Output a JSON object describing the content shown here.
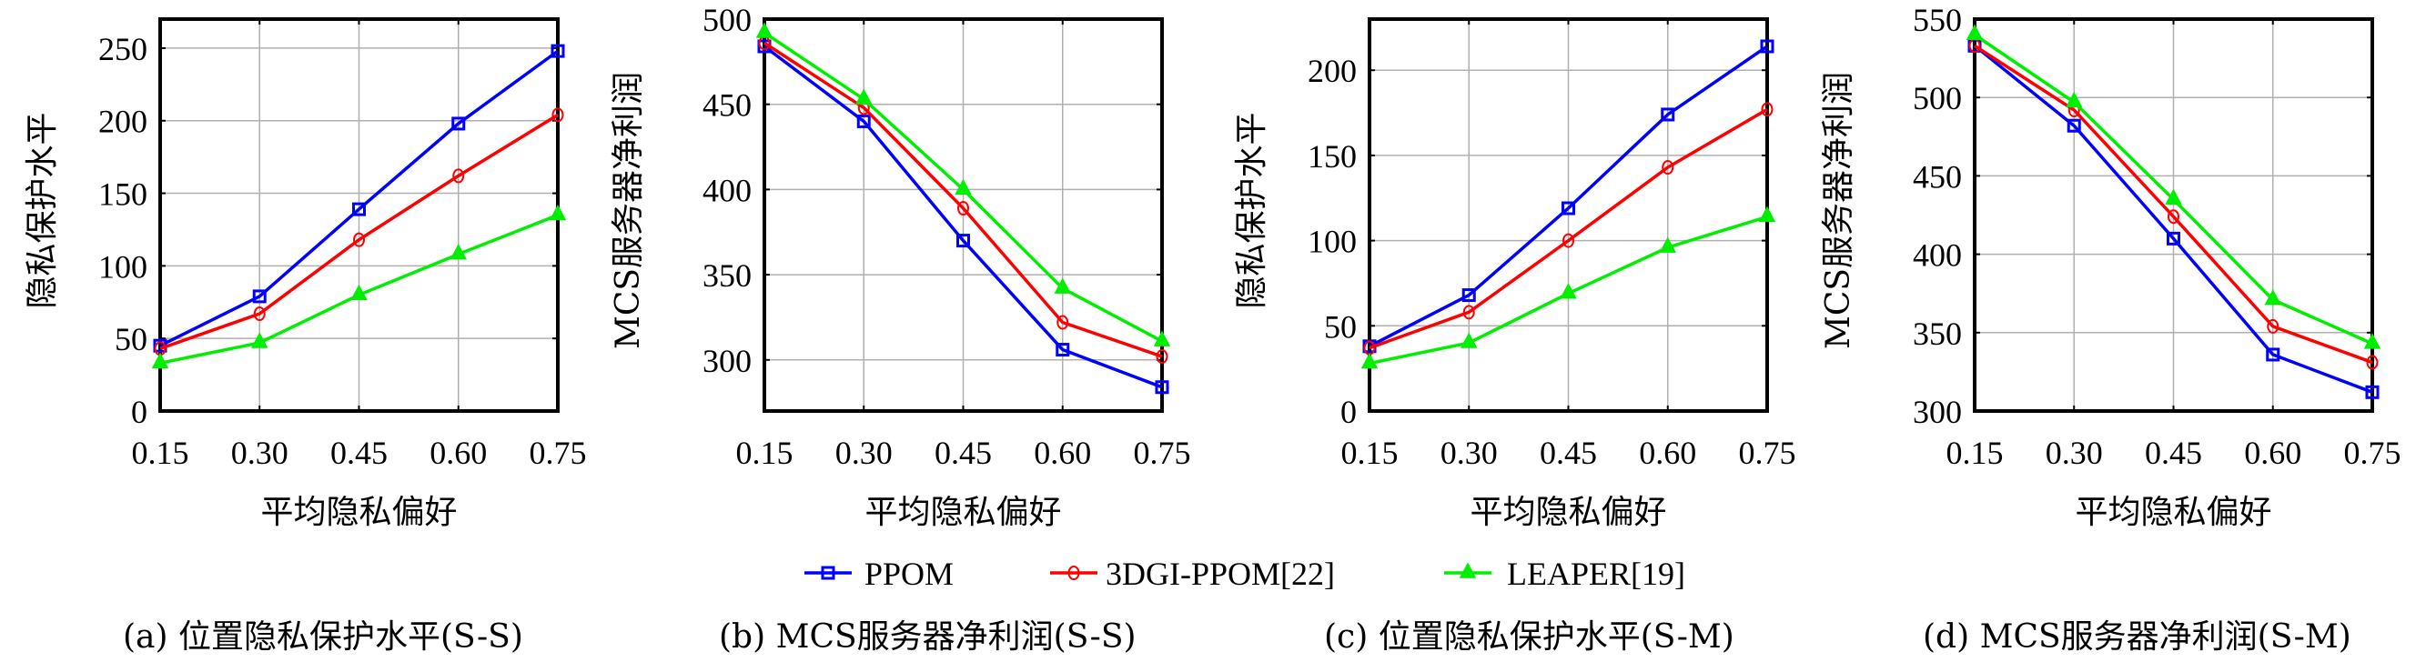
{
  "legend": [
    {
      "name": "PPOM",
      "color": "#0000ff",
      "marker": "square"
    },
    {
      "name": "3DGI-PPOM[22]",
      "color": "#ff0000",
      "marker": "circle"
    },
    {
      "name": "LEAPER[19]",
      "color": "#00ee00",
      "marker": "triangle"
    }
  ],
  "chart_data": [
    {
      "type": "line",
      "title": "(a) 位置隐私保护水平(S-S)",
      "xlabel": "平均隐私偏好",
      "ylabel": "隐私保护水平",
      "x": [
        0.15,
        0.3,
        0.45,
        0.6,
        0.75
      ],
      "xticks": [
        "0.15",
        "0.30",
        "0.45",
        "0.60",
        "0.75"
      ],
      "yticks": [
        "0",
        "50",
        "100",
        "150",
        "200",
        "250"
      ],
      "ytick_values": [
        0,
        50,
        100,
        150,
        200,
        250
      ],
      "ylim": [
        0,
        270
      ],
      "grid": true,
      "series": [
        {
          "name": "PPOM",
          "values": [
            45,
            79,
            139,
            198,
            248
          ]
        },
        {
          "name": "3DGI-PPOM[22]",
          "values": [
            43,
            67,
            118,
            162,
            204
          ]
        },
        {
          "name": "LEAPER[19]",
          "values": [
            33,
            47,
            80,
            108,
            135
          ]
        }
      ]
    },
    {
      "type": "line",
      "title": "(b) MCS服务器净利润(S-S)",
      "xlabel": "平均隐私偏好",
      "ylabel": "MCS服务器净利润",
      "x": [
        0.15,
        0.3,
        0.45,
        0.6,
        0.75
      ],
      "xticks": [
        "0.15",
        "0.30",
        "0.45",
        "0.60",
        "0.75"
      ],
      "yticks": [
        "300",
        "350",
        "400",
        "450",
        "500"
      ],
      "ytick_values": [
        300,
        350,
        400,
        450,
        500
      ],
      "ylim": [
        270,
        500
      ],
      "grid": true,
      "series": [
        {
          "name": "PPOM",
          "values": [
            484,
            440,
            370,
            306,
            284
          ]
        },
        {
          "name": "3DGI-PPOM[22]",
          "values": [
            486,
            448,
            389,
            322,
            302
          ]
        },
        {
          "name": "LEAPER[19]",
          "values": [
            492,
            453,
            400,
            342,
            311
          ]
        }
      ]
    },
    {
      "type": "line",
      "title": "(c) 位置隐私保护水平(S-M)",
      "xlabel": "平均隐私偏好",
      "ylabel": "隐私保护水平",
      "x": [
        0.15,
        0.3,
        0.45,
        0.6,
        0.75
      ],
      "xticks": [
        "0.15",
        "0.30",
        "0.45",
        "0.60",
        "0.75"
      ],
      "yticks": [
        "0",
        "50",
        "100",
        "150",
        "200"
      ],
      "ytick_values": [
        0,
        50,
        100,
        150,
        200
      ],
      "ylim": [
        0,
        230
      ],
      "grid": true,
      "series": [
        {
          "name": "PPOM",
          "values": [
            38,
            68,
            119,
            174,
            214
          ]
        },
        {
          "name": "3DGI-PPOM[22]",
          "values": [
            37,
            58,
            100,
            143,
            177
          ]
        },
        {
          "name": "LEAPER[19]",
          "values": [
            28,
            40,
            69,
            96,
            114
          ]
        }
      ]
    },
    {
      "type": "line",
      "title": "(d) MCS服务器净利润(S-M)",
      "xlabel": "平均隐私偏好",
      "ylabel": "MCS服务器净利润",
      "x": [
        0.15,
        0.3,
        0.45,
        0.6,
        0.75
      ],
      "xticks": [
        "0.15",
        "0.30",
        "0.45",
        "0.60",
        "0.75"
      ],
      "yticks": [
        "300",
        "350",
        "400",
        "450",
        "500",
        "550"
      ],
      "ytick_values": [
        300,
        350,
        400,
        450,
        500,
        550
      ],
      "ylim": [
        300,
        550
      ],
      "grid": true,
      "series": [
        {
          "name": "PPOM",
          "values": [
            533,
            482,
            410,
            336,
            312
          ]
        },
        {
          "name": "3DGI-PPOM[22]",
          "values": [
            533,
            492,
            424,
            354,
            331
          ]
        },
        {
          "name": "LEAPER[19]",
          "values": [
            540,
            497,
            435,
            371,
            343
          ]
        }
      ]
    }
  ]
}
